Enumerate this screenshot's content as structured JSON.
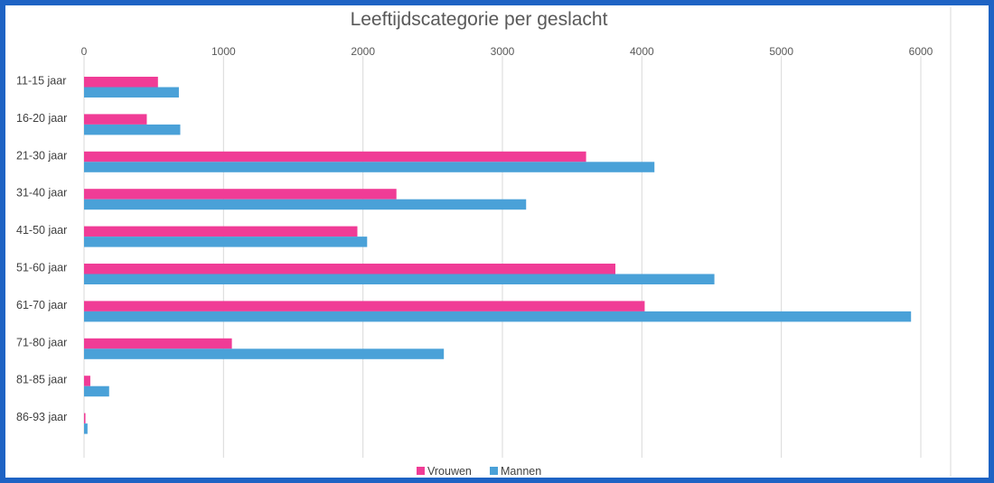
{
  "chart_data": {
    "type": "bar",
    "orientation": "horizontal",
    "title": "Leeftijdscategorie per geslacht",
    "xlim": [
      0,
      6000
    ],
    "x_ticks": [
      "0",
      "1000",
      "2000",
      "3000",
      "4000",
      "5000",
      "6000"
    ],
    "x_tick_values": [
      0,
      1000,
      2000,
      3000,
      4000,
      5000,
      6000
    ],
    "x_axis_position": "top",
    "grid": true,
    "legend_position": "bottom",
    "categories": [
      "11-15 jaar",
      "16-20 jaar",
      "21-30 jaar",
      "31-40 jaar",
      "41-50 jaar",
      "51-60 jaar",
      "61-70 jaar",
      "71-80 jaar",
      "81-85 jaar",
      "86-93 jaar"
    ],
    "series": [
      {
        "name": "Vrouwen",
        "color": "#f03c96",
        "values": [
          530,
          450,
          3600,
          2240,
          1960,
          3810,
          4020,
          1060,
          45,
          10
        ]
      },
      {
        "name": "Mannen",
        "color": "#4aa1d8",
        "values": [
          680,
          690,
          4090,
          3170,
          2030,
          4520,
          5930,
          2580,
          180,
          25
        ]
      }
    ]
  }
}
